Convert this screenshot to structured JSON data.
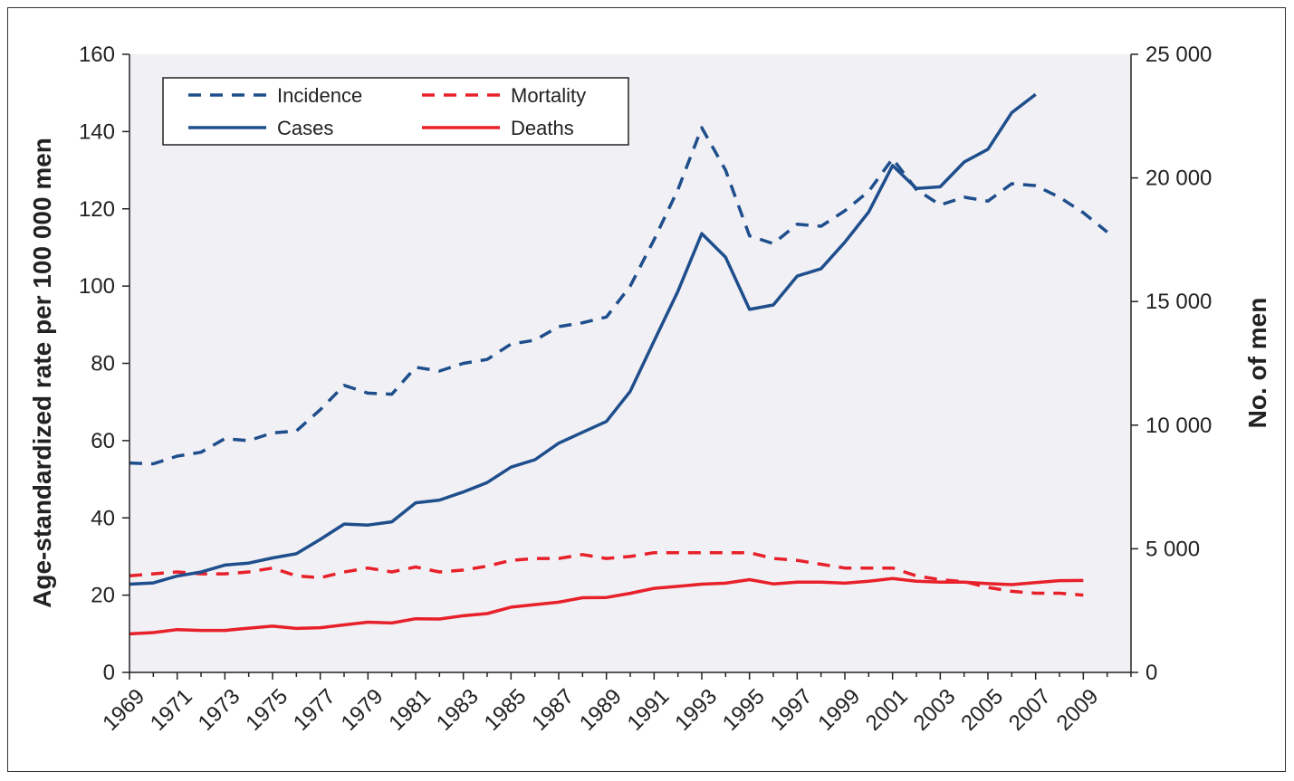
{
  "chart_data": {
    "type": "line",
    "title": "",
    "xlabel": "",
    "ylabel_left": "Age-standardized rate per 100 000 men",
    "ylabel_right": "No. of men",
    "ylim_left": [
      0,
      160
    ],
    "ylim_right": [
      0,
      25000
    ],
    "yticks_left": [
      "0",
      "20",
      "40",
      "60",
      "80",
      "100",
      "120",
      "140",
      "160"
    ],
    "yticks_right": [
      "0",
      "5 000",
      "10 000",
      "15 000",
      "20 000",
      "25 000"
    ],
    "xlim": [
      1969,
      2011
    ],
    "xticks": [
      "1969",
      "1971",
      "1973",
      "1975",
      "1977",
      "1979",
      "1981",
      "1983",
      "1985",
      "1987",
      "1989",
      "1991",
      "1993",
      "1995",
      "1997",
      "1999",
      "2001",
      "2003",
      "2005",
      "2007",
      "2009"
    ],
    "grid": false,
    "legend_position": "top-left",
    "series": [
      {
        "name": "Incidence",
        "axis": "left",
        "style": "dashed",
        "color": "#1f4e8c",
        "x": [
          1969,
          1970,
          1971,
          1972,
          1973,
          1974,
          1975,
          1976,
          1977,
          1978,
          1979,
          1980,
          1981,
          1982,
          1983,
          1984,
          1985,
          1986,
          1987,
          1988,
          1989,
          1990,
          1991,
          1992,
          1993,
          1994,
          1995,
          1996,
          1997,
          1998,
          1999,
          2000,
          2001,
          2002,
          2003,
          2004,
          2005,
          2006,
          2007,
          2008,
          2009,
          2010
        ],
        "values": [
          54.2,
          54,
          56,
          57,
          60.5,
          60,
          62,
          62.5,
          68,
          74.3,
          72.3,
          72,
          79,
          78,
          80,
          81,
          85,
          86,
          89.5,
          90.5,
          92,
          100,
          112,
          125,
          141,
          130,
          113,
          111,
          116,
          115.5,
          119.5,
          124.5,
          133,
          125,
          121,
          123,
          122,
          126.5,
          126,
          123,
          119,
          114
        ]
      },
      {
        "name": "Mortality",
        "axis": "left",
        "style": "dashed",
        "color": "#e8202a",
        "x": [
          1969,
          1970,
          1971,
          1972,
          1973,
          1974,
          1975,
          1976,
          1977,
          1978,
          1979,
          1980,
          1981,
          1982,
          1983,
          1984,
          1985,
          1986,
          1987,
          1988,
          1989,
          1990,
          1991,
          1992,
          1993,
          1994,
          1995,
          1996,
          1997,
          1998,
          1999,
          2000,
          2001,
          2002,
          2003,
          2004,
          2005,
          2006,
          2007,
          2008,
          2009
        ],
        "values": [
          25,
          25.5,
          26,
          25.5,
          25.5,
          26,
          27,
          25,
          24.5,
          26,
          27,
          26,
          27.3,
          26,
          26.5,
          27.5,
          29,
          29.5,
          29.5,
          30.5,
          29.5,
          30,
          31,
          31,
          31,
          31,
          31,
          29.5,
          29,
          28,
          27,
          27,
          27,
          25,
          24,
          23.5,
          22,
          21,
          20.5,
          20.5,
          20
        ]
      },
      {
        "name": "Cases",
        "axis": "right",
        "style": "solid",
        "color": "#1f4e8c",
        "x": [
          1969,
          1970,
          1971,
          1972,
          1973,
          1974,
          1975,
          1976,
          1977,
          1978,
          1979,
          1980,
          1981,
          1982,
          1983,
          1984,
          1985,
          1986,
          1987,
          1988,
          1989,
          1990,
          1991,
          1992,
          1993,
          1994,
          1995,
          1996,
          1997,
          1998,
          1999,
          2000,
          2001,
          2002,
          2003,
          2004,
          2005,
          2006,
          2007
        ],
        "values": [
          3570,
          3620,
          3900,
          4060,
          4340,
          4420,
          4630,
          4800,
          5380,
          6000,
          5960,
          6090,
          6860,
          6970,
          7300,
          7680,
          8300,
          8600,
          9270,
          9710,
          10150,
          11370,
          13400,
          15420,
          17750,
          16790,
          14680,
          14860,
          16030,
          16330,
          17400,
          18620,
          20500,
          19570,
          19640,
          20640,
          21160,
          22640,
          23380
        ]
      },
      {
        "name": "Deaths",
        "axis": "right",
        "style": "solid",
        "color": "#e8202a",
        "x": [
          1969,
          1970,
          1971,
          1972,
          1973,
          1974,
          1975,
          1976,
          1977,
          1978,
          1979,
          1980,
          1981,
          1982,
          1983,
          1984,
          1985,
          1986,
          1987,
          1988,
          1989,
          1990,
          1991,
          1992,
          1993,
          1994,
          1995,
          1996,
          1997,
          1998,
          1999,
          2000,
          2001,
          2002,
          2003,
          2004,
          2005,
          2006,
          2007,
          2008,
          2009
        ],
        "values": [
          1560,
          1610,
          1730,
          1700,
          1700,
          1790,
          1870,
          1780,
          1810,
          1920,
          2030,
          2000,
          2170,
          2160,
          2290,
          2380,
          2640,
          2740,
          2840,
          3020,
          3030,
          3200,
          3400,
          3480,
          3570,
          3610,
          3750,
          3580,
          3650,
          3650,
          3610,
          3690,
          3800,
          3690,
          3650,
          3650,
          3590,
          3550,
          3630,
          3710,
          3720
        ]
      }
    ]
  }
}
